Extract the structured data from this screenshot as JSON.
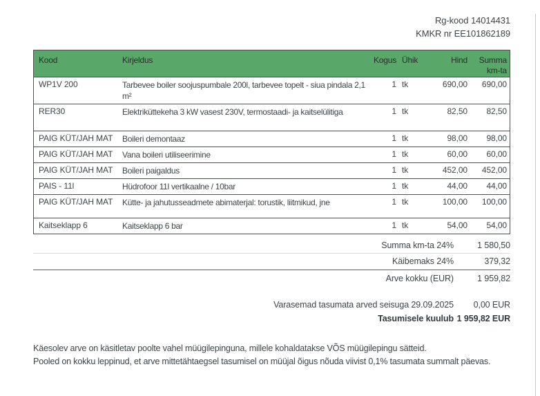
{
  "doc_ids": {
    "rg_kood": "Rg-kood 14014431",
    "kmkr": "KMKR nr EE101862189"
  },
  "table": {
    "headers": {
      "kood": "Kood",
      "kirjeldus": "Kirjeldus",
      "kogus": "Kogus",
      "uhik": "Ühik",
      "hind": "Hind",
      "summa_line1": "Summa",
      "summa_line2": "km-ta"
    },
    "rows": [
      {
        "kood": "WP1V 200",
        "kirjeldus": "Tarbevee boiler soojuspumbale 200l, tarbevee topelt - siua pindala 2,1 m²",
        "kogus": "1",
        "uhik": "tk",
        "hind": "690,00",
        "summa": "690,00"
      },
      {
        "kood": "RER30",
        "kirjeldus": "Elektriküttekeha 3 kW vasest 230V, termostaadi- ja kaitselülitiga",
        "kogus": "1",
        "uhik": "tk",
        "hind": "82,50",
        "summa": "82,50"
      },
      {
        "kood": "PAIG KÜT/JAH MAT",
        "kirjeldus": "Boileri demontaaz",
        "kogus": "1",
        "uhik": "tk",
        "hind": "98,00",
        "summa": "98,00"
      },
      {
        "kood": "PAIG KÜT/JAH MAT",
        "kirjeldus": "Vana boileri utiliseerimine",
        "kogus": "1",
        "uhik": "tk",
        "hind": "60,00",
        "summa": "60,00"
      },
      {
        "kood": "PAIG KÜT/JAH MAT",
        "kirjeldus": "Boileri paigaldus",
        "kogus": "1",
        "uhik": "tk",
        "hind": "452,00",
        "summa": "452,00"
      },
      {
        "kood": "PAIS - 11l",
        "kirjeldus": "Hüdrofoor 11l vertikaalne / 10bar",
        "kogus": "1",
        "uhik": "tk",
        "hind": "44,00",
        "summa": "44,00"
      },
      {
        "kood": "PAIG KÜT/JAH MAT",
        "kirjeldus": "Kütte- ja jahutusseadmete abimaterjal: torustik, liitmikud, jne",
        "kogus": "1",
        "uhik": "tk",
        "hind": "100,00",
        "summa": "100,00"
      },
      {
        "kood": "Kaitseklapp 6",
        "kirjeldus": "Kaitseklapp 6 bar",
        "kogus": "1",
        "uhik": "tk",
        "hind": "54,00",
        "summa": "54,00"
      }
    ]
  },
  "summary": {
    "subtotal_label": "Summa km-ta 24%",
    "subtotal_value": "1 580,50",
    "vat_label": "Käibemaks 24%",
    "vat_value": "379,32",
    "total_label": "Arve kokku  (EUR)",
    "total_value": "1 959,82",
    "previous_label": "Varasemad tasumata arved seisuga 29.09.2025",
    "previous_value": "0,00 EUR",
    "due_label": "Tasumisele kuulub",
    "due_value": "1 959,82 EUR"
  },
  "footer": {
    "line1": "Käesolev arve on käsitletav poolte vahel müügilepinguna, millele kohaldatakse VÕS müügilepingu sätteid.",
    "line2": "Pooled on kokku leppinud, et arve mittetähtaegsel tasumisel on müüjal õigus nõuda viivist 0,1% tasumata summalt päevas."
  },
  "colors": {
    "table_header_green": "#5aa76a",
    "table_border": "#4c514d",
    "body_text": "#3e4346",
    "page_edge": "#c6c6c6"
  }
}
